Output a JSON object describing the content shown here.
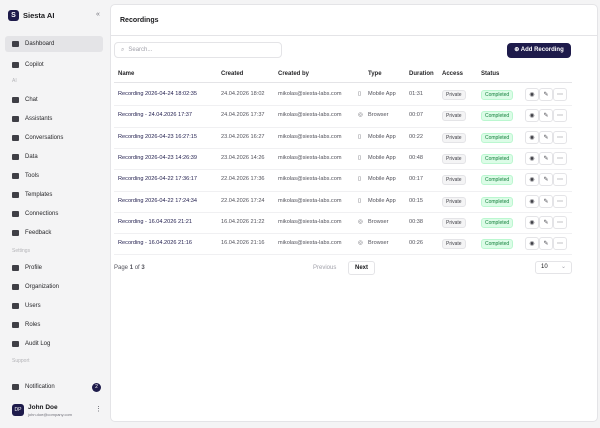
{
  "sidebar": {
    "brand": "Siesta AI",
    "nav": [
      {
        "label": "Dashboard"
      },
      {
        "label": "Copilot"
      },
      {
        "section": "AI"
      },
      {
        "label": "Chat"
      },
      {
        "label": "Assistants"
      },
      {
        "label": "Conversations"
      },
      {
        "label": "Data"
      },
      {
        "label": "Tools"
      },
      {
        "label": "Templates"
      },
      {
        "label": "Connections"
      },
      {
        "label": "Feedback"
      },
      {
        "section": "Settings"
      },
      {
        "label": "Profile"
      },
      {
        "label": "Organization"
      },
      {
        "label": "Users"
      },
      {
        "label": "Roles"
      },
      {
        "label": "Audit Log"
      },
      {
        "section": "Support"
      }
    ],
    "notification": {
      "label": "Notification",
      "count": "2"
    },
    "user": {
      "initials": "DP",
      "name": "John Doe",
      "email": "john.doe@company.com"
    }
  },
  "header": {
    "title": "Recordings"
  },
  "toolbar": {
    "search_placeholder": "Search...",
    "add_button": "Add Recording"
  },
  "table": {
    "columns": [
      "Name",
      "Created",
      "Created by",
      "Type",
      "Duration",
      "Access",
      "Status"
    ],
    "rows": [
      [
        "Recording 2026-04-24 18:02:35",
        "24.04.2026 18:02",
        "mikolas@siesta-labs.com",
        "Mobile App",
        "01:31",
        "Private",
        "Completed"
      ],
      [
        "Recording - 24.04.2026 17:37",
        "24.04.2026 17:37",
        "mikolas@siesta-labs.com",
        "Browser",
        "00:07",
        "Private",
        "Completed"
      ],
      [
        "Recording 2026-04-23 16:27:15",
        "23.04.2026 16:27",
        "mikolas@siesta-labs.com",
        "Mobile App",
        "00:22",
        "Private",
        "Completed"
      ],
      [
        "Recording 2026-04-23 14:26:39",
        "23.04.2026 14:26",
        "mikolas@siesta-labs.com",
        "Mobile App",
        "00:48",
        "Private",
        "Completed"
      ],
      [
        "Recording 2026-04-22 17:36:17",
        "22.04.2026 17:36",
        "mikolas@siesta-labs.com",
        "Mobile App",
        "00:17",
        "Private",
        "Completed"
      ],
      [
        "Recording 2026-04-22 17:24:34",
        "22.04.2026 17:24",
        "mikolas@siesta-labs.com",
        "Mobile App",
        "00:15",
        "Private",
        "Completed"
      ],
      [
        "Recording - 16.04.2026 21:21",
        "16.04.2026 21:22",
        "mikolas@siesta-labs.com",
        "Browser",
        "00:38",
        "Private",
        "Completed"
      ],
      [
        "Recording - 16.04.2026 21:16",
        "16.04.2026 21:16",
        "mikolas@siesta-labs.com",
        "Browser",
        "00:26",
        "Private",
        "Completed"
      ]
    ]
  },
  "pagination": {
    "prefix": "Page",
    "current": "1",
    "of": "of",
    "total": "3",
    "previous": "Previous",
    "next": "Next",
    "page_size": "10"
  }
}
